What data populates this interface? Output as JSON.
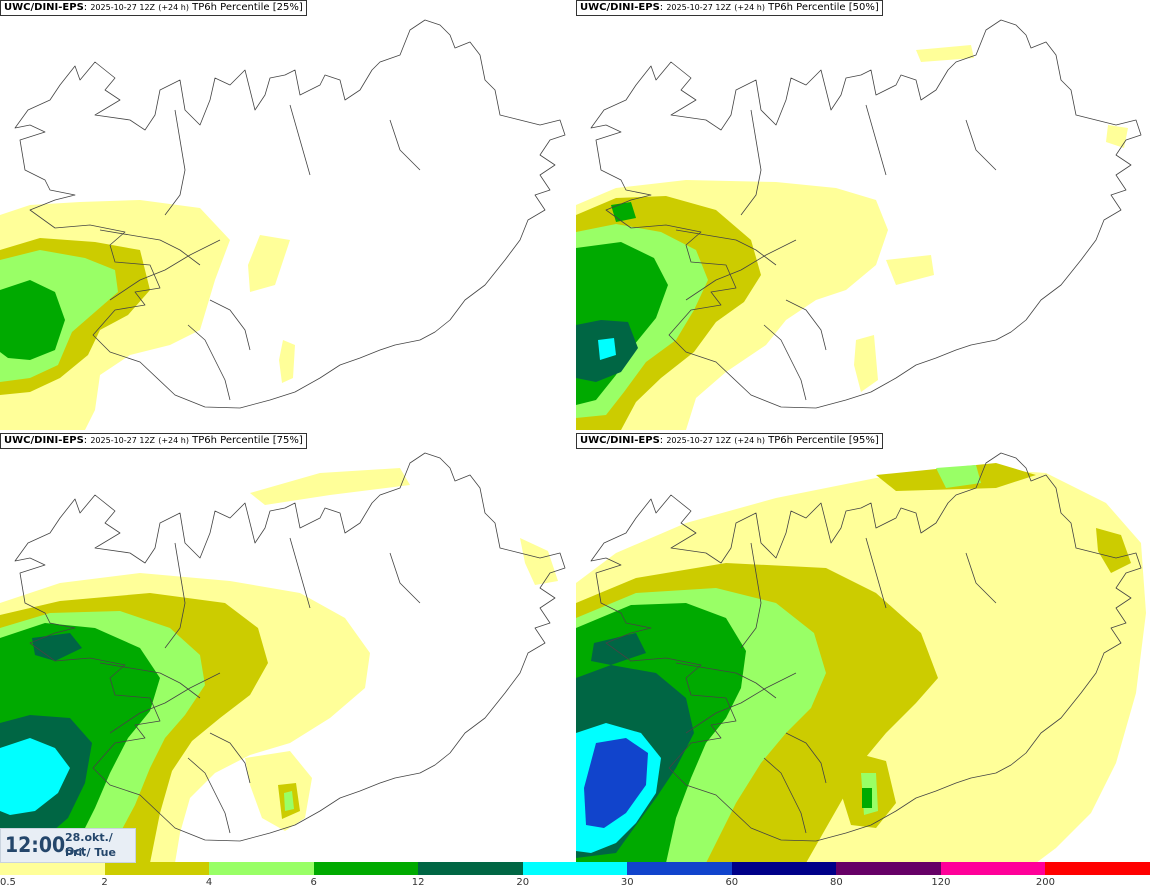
{
  "panels": [
    {
      "model": "UWC/DINI-EPS",
      "run": "2025-10-27 12Z",
      "lead": "(+24 h)",
      "param": "TP6h Percentile",
      "pct": "[25%]"
    },
    {
      "model": "UWC/DINI-EPS",
      "run": "2025-10-27 12Z",
      "lead": "(+24 h)",
      "param": "TP6h Percentile",
      "pct": "[50%]"
    },
    {
      "model": "UWC/DINI-EPS",
      "run": "2025-10-27 12Z",
      "lead": "(+24 h)",
      "param": "TP6h Percentile",
      "pct": "[75%]"
    },
    {
      "model": "UWC/DINI-EPS",
      "run": "2025-10-27 12Z",
      "lead": "(+24 h)",
      "param": "TP6h Percentile",
      "pct": "[95%]"
    }
  ],
  "valid_time": {
    "time": "12:00",
    "date": "28.okt./ Oct",
    "day": "Þri./ Tue"
  },
  "legend": {
    "colors": [
      "#ffff99",
      "#cccc00",
      "#99ff66",
      "#00aa00",
      "#006644",
      "#00ffff",
      "#1144cc",
      "#000088",
      "#660066",
      "#ff0099",
      "#ff0000"
    ],
    "tick_labels": [
      "0.5",
      "2",
      "4",
      "6",
      "12",
      "20",
      "30",
      "60",
      "80",
      "120",
      "200"
    ]
  }
}
